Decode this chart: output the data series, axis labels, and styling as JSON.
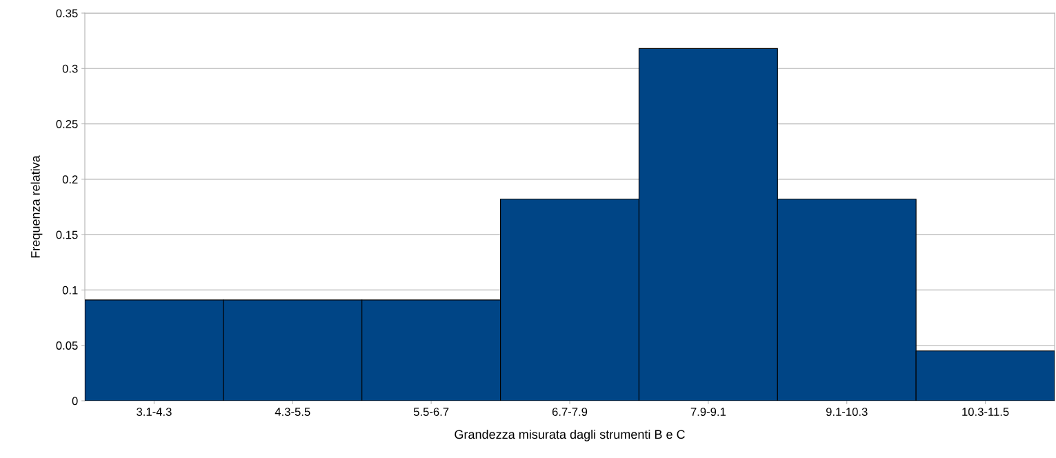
{
  "chart_data": {
    "type": "bar",
    "xlabel": "Grandezza misurata dagli strumenti B e C",
    "ylabel": "Frequenza relativa",
    "categories": [
      "3.1-4.3",
      "4.3-5.5",
      "5.5-6.7",
      "6.7-7.9",
      "7.9-9.1",
      "9.1-10.3",
      "10.3-11.5"
    ],
    "values": [
      0.091,
      0.091,
      0.091,
      0.182,
      0.318,
      0.182,
      0.045
    ],
    "color": "#004586",
    "ylim": [
      0,
      0.35
    ],
    "yticks": [
      0,
      0.05,
      0.1,
      0.15,
      0.2,
      0.25,
      0.3,
      0.35
    ],
    "grid": "y",
    "legend": false
  }
}
